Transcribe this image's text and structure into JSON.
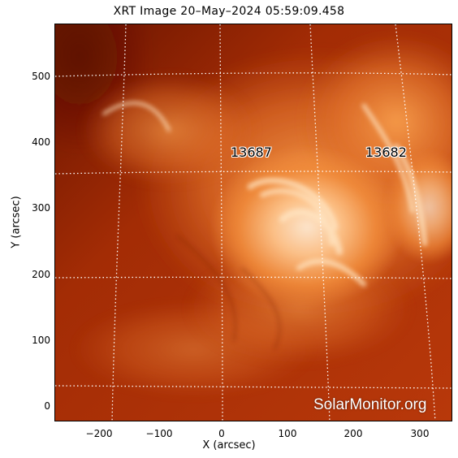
{
  "title": "XRT Image 20–May–2024 05:59:09.458",
  "x_axis": {
    "label": "X (arcsec)",
    "ticks": [
      "−200",
      "−100",
      "0",
      "100",
      "200",
      "300"
    ]
  },
  "y_axis": {
    "label": "Y (arcsec)",
    "ticks": [
      "0",
      "100",
      "200",
      "300",
      "400",
      "500"
    ]
  },
  "active_regions": [
    {
      "label": "13687"
    },
    {
      "label": "13682"
    }
  ],
  "watermark": "SolarMonitor.org",
  "colors": {
    "background_dark": "#7a1a00",
    "mid": "#c94a10",
    "bright": "#ffd9a8",
    "grid": "#ffffff"
  }
}
